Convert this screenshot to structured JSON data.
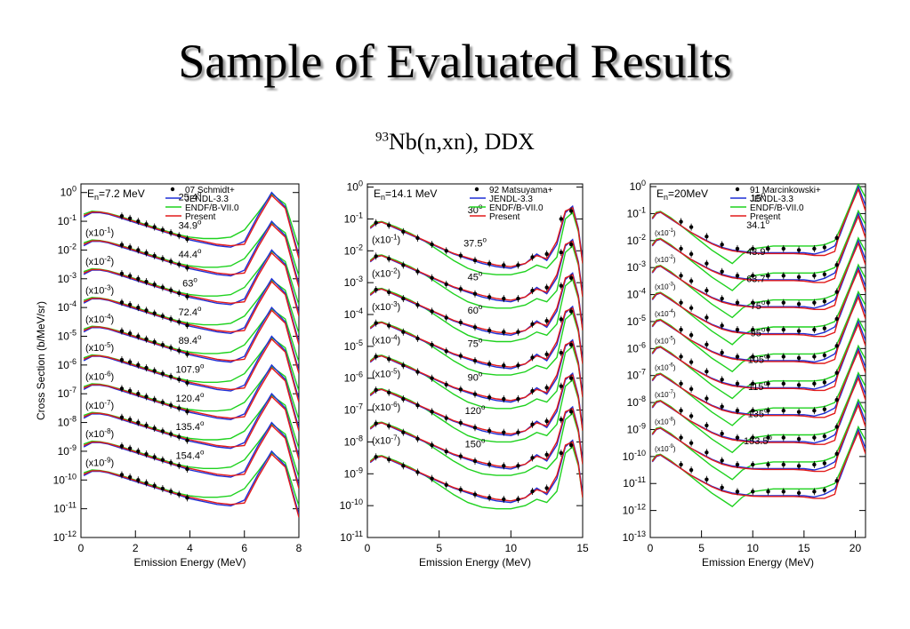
{
  "slide": {
    "title": "Sample of Evaluated Results",
    "subtitle_mass": "93",
    "subtitle_rest": "Nb(n,xn), DDX"
  },
  "colors": {
    "jendl": "#1f2fd6",
    "endf": "#1fd21f",
    "present": "#e21a1a",
    "exp": "#000000"
  },
  "chart_data": [
    {
      "type": "line",
      "energy_label": "E",
      "energy_sub": "n",
      "energy_value": "=7.2 MeV",
      "xlabel": "Emission Energy (MeV)",
      "ylabel": "Cross Section (b/MeV/sr)",
      "xlim": [
        0,
        8
      ],
      "xticks": [
        "0",
        "2",
        "4",
        "6",
        "8"
      ],
      "ylim_log10": [
        -12,
        0.3
      ],
      "yticks_exp": [
        "0",
        "-1",
        "-2",
        "-3",
        "-4",
        "-5",
        "-6",
        "-7",
        "-8",
        "-9",
        "-10",
        "-11",
        "-12"
      ],
      "legend": [
        "07 Schmidt+",
        "JENDL-3.3",
        "ENDF/B-VII.0",
        "Present"
      ],
      "angles": [
        "25.4",
        "34.9",
        "44.4",
        "63",
        "72.4",
        "89.4",
        "107.9",
        "120.4",
        "135.4",
        "154.4"
      ],
      "scale_exponents": [
        "",
        "-1",
        "-2",
        "-3",
        "-4",
        "-5",
        "-6",
        "-7",
        "-8",
        "-9"
      ],
      "series_offset_log10": [
        -0.7,
        -1.7,
        -2.7,
        -3.7,
        -4.7,
        -5.7,
        -6.7,
        -7.7,
        -8.7,
        -9.7
      ],
      "curve_x": [
        0.1,
        0.4,
        0.7,
        1.0,
        1.5,
        2.0,
        2.5,
        3.0,
        3.5,
        4.0,
        4.5,
        5.0,
        5.5,
        6.0,
        6.5,
        7.0,
        7.5,
        8.0
      ],
      "jendl_rel": [
        -0.15,
        0.0,
        0.0,
        -0.05,
        -0.2,
        -0.35,
        -0.5,
        -0.65,
        -0.8,
        -0.95,
        -1.05,
        -1.15,
        -1.2,
        -1.0,
        -0.1,
        0.7,
        0.2,
        -1.5
      ],
      "endf_rel": [
        -0.05,
        0.05,
        0.03,
        -0.02,
        -0.15,
        -0.3,
        -0.45,
        -0.6,
        -0.75,
        -0.85,
        -0.9,
        -0.9,
        -0.85,
        -0.6,
        0.0,
        0.65,
        0.3,
        -1.2
      ],
      "present_rel": [
        -0.1,
        0.02,
        0.02,
        -0.03,
        -0.17,
        -0.32,
        -0.48,
        -0.63,
        -0.78,
        -0.9,
        -1.0,
        -1.1,
        -1.15,
        -1.1,
        -0.2,
        0.6,
        0.15,
        -1.6
      ],
      "exp_x": [
        1.5,
        1.8,
        2.1,
        2.4,
        2.7,
        3.0,
        3.3,
        3.6,
        3.9
      ],
      "exp_rel": [
        -0.12,
        -0.2,
        -0.3,
        -0.4,
        -0.5,
        -0.6,
        -0.7,
        -0.8,
        -0.92
      ]
    },
    {
      "type": "line",
      "energy_label": "E",
      "energy_sub": "n",
      "energy_value": "=14.1 MeV",
      "xlabel": "Emission Energy (MeV)",
      "ylabel": "",
      "xlim": [
        0,
        15
      ],
      "xticks": [
        "0",
        "5",
        "10",
        "15"
      ],
      "ylim_log10": [
        -11,
        0.1
      ],
      "yticks_exp": [
        "0",
        "-1",
        "-2",
        "-3",
        "-4",
        "-5",
        "-6",
        "-7",
        "-8",
        "-9",
        "-10",
        "-11"
      ],
      "legend": [
        "92 Matsuyama+",
        "JENDL-3.3",
        "ENDF/B-VII.0",
        "Present"
      ],
      "angles": [
        "30",
        "37.5",
        "45",
        "60",
        "75",
        "90",
        "120",
        "150"
      ],
      "scale_exponents": [
        "",
        "-1",
        "-2",
        "-3",
        "-4",
        "-5",
        "-6",
        "-7"
      ],
      "series_offset_log10": [
        -1.1,
        -2.15,
        -3.2,
        -4.25,
        -5.3,
        -6.35,
        -7.4,
        -8.45
      ],
      "curve_x": [
        0.2,
        0.6,
        1.0,
        2.0,
        3.0,
        4.0,
        5.0,
        6.0,
        7.0,
        8.0,
        9.0,
        10.0,
        11.0,
        11.8,
        12.5,
        13.2,
        13.8,
        14.3,
        14.7,
        15.0
      ],
      "jendl_rel": [
        -0.2,
        -0.05,
        0.0,
        -0.2,
        -0.4,
        -0.6,
        -0.8,
        -1.0,
        -1.15,
        -1.3,
        -1.4,
        -1.45,
        -1.3,
        -1.0,
        -1.2,
        -0.7,
        0.3,
        0.5,
        -0.2,
        -1.2
      ],
      "endf_rel": [
        -0.15,
        0.0,
        0.02,
        -0.15,
        -0.35,
        -0.6,
        -0.9,
        -1.2,
        -1.45,
        -1.6,
        -1.65,
        -1.65,
        -1.55,
        -1.35,
        -1.45,
        -1.1,
        0.1,
        0.3,
        -0.3,
        -1.3
      ],
      "present_rel": [
        -0.18,
        -0.03,
        0.0,
        -0.18,
        -0.38,
        -0.58,
        -0.78,
        -0.98,
        -1.12,
        -1.25,
        -1.35,
        -1.4,
        -1.3,
        -1.05,
        -1.15,
        -0.6,
        0.35,
        0.45,
        -0.25,
        -1.3
      ],
      "exp_x": [
        0.6,
        1.5,
        2.5,
        3.5,
        4.5,
        5.5,
        6.5,
        7.5,
        8.5,
        9.5,
        10.5,
        11.5,
        12.5,
        13.5,
        14.2
      ],
      "exp_rel": [
        -0.02,
        -0.1,
        -0.3,
        -0.5,
        -0.7,
        -0.9,
        -1.05,
        -1.2,
        -1.3,
        -1.35,
        -1.35,
        -1.1,
        -1.0,
        0.1,
        0.35
      ]
    },
    {
      "type": "line",
      "energy_label": "E",
      "energy_sub": "n",
      "energy_value": "=20MeV",
      "xlabel": "Emission Energy (MeV)",
      "ylabel": "",
      "xlim": [
        0,
        21
      ],
      "xticks": [
        "0",
        "5",
        "10",
        "15",
        "20"
      ],
      "ylim_log10": [
        -13,
        0.1
      ],
      "yticks_exp": [
        "0",
        "-1",
        "-2",
        "-3",
        "-4",
        "-5",
        "-6",
        "-7",
        "-8",
        "-9",
        "-10",
        "-11",
        "-12",
        "-13"
      ],
      "legend": [
        "91 Marcinkowski+",
        "JENDL-3.3",
        "ENDF/B-VII.0",
        "Present"
      ],
      "angles": [
        "15",
        "34.1",
        "43.9",
        "63.7",
        "75",
        "95",
        "105",
        "115",
        "135",
        "153.5"
      ],
      "scale_exponents": [
        "",
        "-1",
        "-2",
        "-3",
        "-4",
        "-5",
        "-6",
        "-7",
        "-8",
        "-9"
      ],
      "series_offset_log10": [
        -1.0,
        -2.0,
        -3.0,
        -4.0,
        -5.0,
        -6.0,
        -7.0,
        -8.0,
        -9.0,
        -10.0
      ],
      "curve_x": [
        0.2,
        0.6,
        1.0,
        2.0,
        3.0,
        4.0,
        5.0,
        6.0,
        7.0,
        8.0,
        9.0,
        10.0,
        11.0,
        12.0,
        13.0,
        14.0,
        15.0,
        16.0,
        17.0,
        18.0,
        18.5,
        19.5,
        20.3,
        21.0
      ],
      "jendl_rel": [
        -0.2,
        0.0,
        0.05,
        -0.2,
        -0.45,
        -0.7,
        -0.9,
        -1.1,
        -1.25,
        -1.35,
        -1.4,
        -1.45,
        -1.45,
        -1.45,
        -1.45,
        -1.45,
        -1.45,
        -1.5,
        -1.4,
        -1.2,
        -0.8,
        0.2,
        1.0,
        0.3
      ],
      "endf_rel": [
        -0.15,
        0.05,
        0.08,
        -0.15,
        -0.45,
        -0.75,
        -1.05,
        -1.35,
        -1.6,
        -1.85,
        -1.5,
        -1.3,
        -1.25,
        -1.2,
        -1.2,
        -1.2,
        -1.2,
        -1.2,
        -1.15,
        -1.0,
        -0.6,
        0.3,
        1.1,
        0.6
      ],
      "present_rel": [
        -0.18,
        0.02,
        0.06,
        -0.18,
        -0.45,
        -0.7,
        -0.92,
        -1.12,
        -1.28,
        -1.38,
        -1.43,
        -1.47,
        -1.48,
        -1.48,
        -1.48,
        -1.48,
        -1.5,
        -1.55,
        -1.55,
        -1.4,
        -0.7,
        0.2,
        0.9,
        0.1
      ],
      "exp_x": [
        3.0,
        4.0,
        5.5,
        7.0,
        8.5,
        10.0,
        11.5,
        13.0,
        14.5,
        16.0,
        17.0,
        18.2
      ],
      "exp_rel": [
        -0.3,
        -0.5,
        -0.85,
        -1.15,
        -1.3,
        -1.3,
        -1.3,
        -1.3,
        -1.35,
        -1.3,
        -1.25,
        -0.9
      ]
    }
  ]
}
